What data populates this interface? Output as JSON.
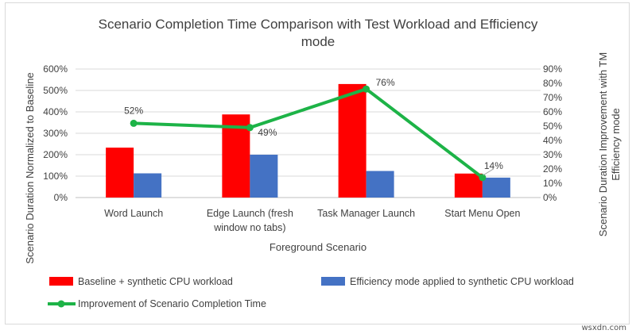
{
  "chart_data": {
    "type": "bar",
    "title_lines": [
      "Scenario Completion Time Comparison with Test Workload and Efficiency",
      "mode"
    ],
    "xlabel": "Foreground Scenario",
    "ylabel": "Scenario Duration Normalized to Baseline",
    "ylabel2_lines": [
      "Scenario Duration Improvement with TM",
      "Efficiency mode"
    ],
    "categories": [
      [
        "Word Launch"
      ],
      [
        "Edge Launch (fresh",
        "window no tabs)"
      ],
      [
        "Task Manager Launch"
      ],
      [
        "Start Menu Open"
      ]
    ],
    "ylim": [
      0,
      600
    ],
    "yticks": [
      0,
      100,
      200,
      300,
      400,
      500,
      600
    ],
    "ytick_labels": [
      "0%",
      "100%",
      "200%",
      "300%",
      "400%",
      "500%",
      "600%"
    ],
    "y2lim": [
      0,
      90
    ],
    "y2ticks": [
      0,
      10,
      20,
      30,
      40,
      50,
      60,
      70,
      80,
      90
    ],
    "y2tick_labels": [
      "0%",
      "10%",
      "20%",
      "30%",
      "40%",
      "50%",
      "60%",
      "70%",
      "80%",
      "90%"
    ],
    "series": [
      {
        "name": "Baseline + synthetic CPU  workload",
        "kind": "bar",
        "color": "#ff0000",
        "values": [
          233,
          388,
          530,
          112
        ]
      },
      {
        "name": "Efficiency mode applied to synthetic CPU workload",
        "kind": "bar",
        "color": "#4472c4",
        "values": [
          113,
          200,
          124,
          93
        ]
      },
      {
        "name": "Improvement of Scenario Completion Time",
        "kind": "line",
        "axis": "right",
        "color": "#1db347",
        "values": [
          52,
          49,
          76,
          14
        ],
        "labels": [
          "52%",
          "49%",
          "76%",
          "14%"
        ]
      }
    ],
    "grid": true,
    "legend_position": "bottom"
  },
  "watermark": "wsxdn.com"
}
